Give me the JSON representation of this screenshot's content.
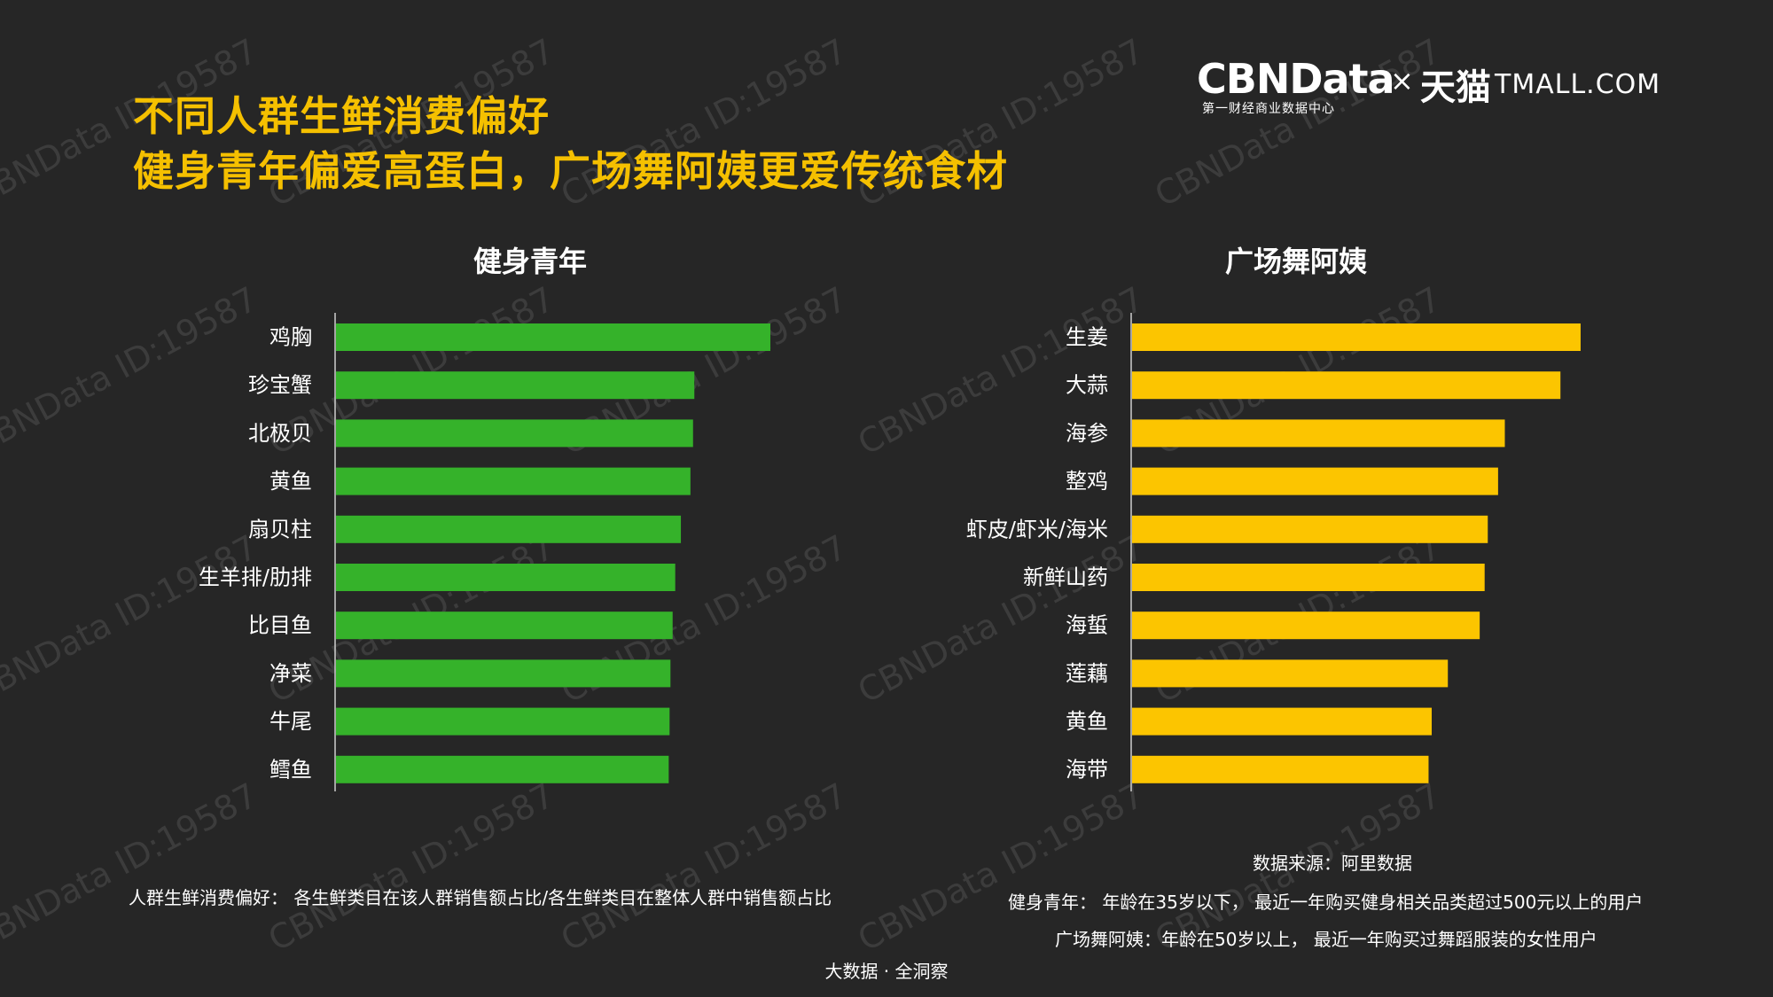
{
  "title": {
    "line1": "不同人群生鲜消费偏好",
    "line2": "健身青年偏爱高蛋白，广场舞阿姨更爱传统食材"
  },
  "logo": {
    "cbn": "CBNData",
    "cbn_sub": "第一财经商业数据中心",
    "times": "×",
    "tmall_cn": "天猫",
    "tmall_en": "TMALL.COM"
  },
  "watermark": "CBNData ID:19587",
  "colors": {
    "background": "#262626",
    "title": "#f5c000",
    "fitness_bar": "#35b22a",
    "dance_bar": "#fcc500",
    "axis": "#cfcfcf"
  },
  "chart_data": [
    {
      "type": "bar",
      "orientation": "horizontal",
      "title": "健身青年",
      "categories": [
        "鸡胸",
        "珍宝蟹",
        "北极贝",
        "黄鱼",
        "扇贝柱",
        "生羊排/肋排",
        "比目鱼",
        "净菜",
        "牛尾",
        "鳕鱼"
      ],
      "values": [
        100,
        82.5,
        82.2,
        81.6,
        79.4,
        78.1,
        77.5,
        77.0,
        76.8,
        76.6
      ],
      "value_unit": "relative (longest bar = 100, no numeric scale shown)",
      "color": "#35b22a"
    },
    {
      "type": "bar",
      "orientation": "horizontal",
      "title": "广场舞阿姨",
      "categories": [
        "生姜",
        "大蒜",
        "海参",
        "整鸡",
        "虾皮/虾米/海米",
        "新鲜山药",
        "海蜇",
        "莲藕",
        "黄鱼",
        "海带"
      ],
      "values": [
        100,
        95.5,
        83.1,
        81.6,
        79.3,
        78.6,
        77.5,
        70.4,
        66.8,
        66.1
      ],
      "value_unit": "relative (longest bar = 100, no numeric scale shown)",
      "color": "#fcc500"
    }
  ],
  "notes": {
    "left_definition": "人群生鲜消费偏好： 各生鲜类目在该人群销售额占比/各生鲜类目在整体人群中销售额占比",
    "source": "数据来源：阿里数据",
    "fitness_definition": "健身青年： 年龄在35岁以下， 最近一年购买健身相关品类超过500元以上的用户",
    "dance_definition": "广场舞阿姨：年龄在50岁以上， 最近一年购买过舞蹈服装的女性用户"
  },
  "footer": "大数据 · 全洞察"
}
